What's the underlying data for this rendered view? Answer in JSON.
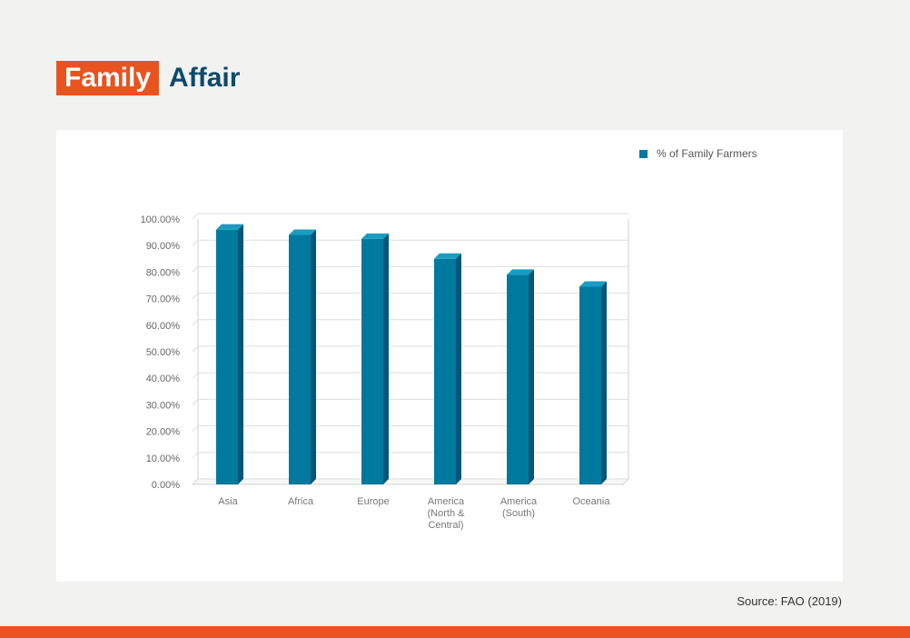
{
  "title": {
    "highlight": "Family",
    "rest": "Affair"
  },
  "source": "Source: FAO (2019)",
  "colors": {
    "accent": "#e8531f",
    "title": "#0d4a6b",
    "bar_front": "#00799f",
    "bar_side": "#005779",
    "bar_top": "#1a9cc2"
  },
  "chart_data": {
    "type": "bar",
    "categories": [
      [
        "Asia"
      ],
      [
        "Africa"
      ],
      [
        "Europe"
      ],
      [
        "America",
        "(North &",
        "Central)"
      ],
      [
        "America",
        "(South)"
      ],
      [
        "Oceania"
      ]
    ],
    "series": [
      {
        "name": "% of Family Farmers",
        "values": [
          96,
          94,
          92.5,
          85,
          79,
          74.5
        ]
      }
    ],
    "ylim": [
      0,
      100
    ],
    "yticks": [
      "0.00%",
      "10.00%",
      "20.00%",
      "30.00%",
      "40.00%",
      "50.00%",
      "60.00%",
      "70.00%",
      "80.00%",
      "90.00%",
      "100.00%"
    ],
    "grid": true,
    "legend": "top-right"
  }
}
